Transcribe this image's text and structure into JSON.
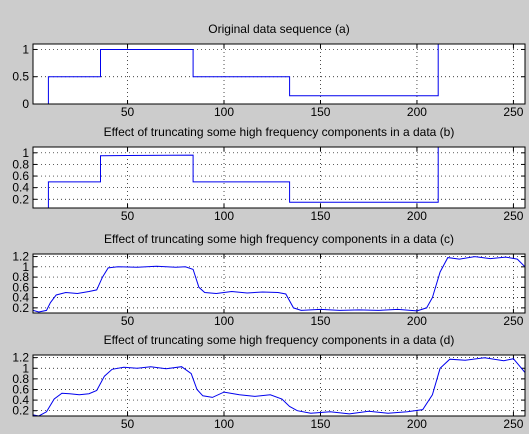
{
  "figure": {
    "background": "#cccccc",
    "line_color": "#0000ee"
  },
  "chart_data": [
    {
      "type": "line",
      "title": "Original data sequence (a)",
      "xlim": [
        1,
        256
      ],
      "xticks": [
        50,
        100,
        150,
        200,
        250
      ],
      "ylim": [
        0,
        1.1
      ],
      "yticks": [
        0,
        0.5,
        1
      ],
      "ytick_labels": [
        "0",
        "0.5",
        "1"
      ],
      "grid": true,
      "series": [
        {
          "x": [
            1,
            9,
            9,
            36,
            36,
            84,
            84,
            134,
            134,
            211,
            211,
            256
          ],
          "y": [
            0,
            0,
            0.5,
            0.5,
            1.0,
            1.0,
            0.5,
            0.5,
            0.15,
            0.15,
            1.1,
            1.1
          ]
        }
      ]
    },
    {
      "type": "line",
      "title": "Effect of truncating some high frequency components in a data (b)",
      "xlim": [
        1,
        256
      ],
      "xticks": [
        50,
        100,
        150,
        200,
        250
      ],
      "ylim": [
        0.05,
        1.1
      ],
      "yticks": [
        0.2,
        0.4,
        0.6,
        0.8,
        1
      ],
      "ytick_labels": [
        "0.2",
        "0.4",
        "0.6",
        "0.8",
        "1"
      ],
      "grid": true,
      "series": [
        {
          "x": [
            1,
            9,
            9,
            36,
            36,
            84,
            84,
            134,
            134,
            211,
            211,
            256
          ],
          "y": [
            0.05,
            0.05,
            0.5,
            0.5,
            0.95,
            0.96,
            0.5,
            0.5,
            0.15,
            0.15,
            1.1,
            1.1
          ]
        }
      ]
    },
    {
      "type": "line",
      "title": "Effect of truncating some high frequency components in a data (c)",
      "xlim": [
        1,
        256
      ],
      "xticks": [
        50,
        100,
        150,
        200,
        250
      ],
      "ylim": [
        0.1,
        1.25
      ],
      "yticks": [
        0.2,
        0.4,
        0.6,
        0.8,
        1,
        1.2
      ],
      "ytick_labels": [
        "0.2",
        "0.4",
        "0.6",
        "0.8",
        "1",
        "1.2"
      ],
      "grid": true,
      "series": [
        {
          "x": [
            1,
            4,
            8,
            10,
            13,
            18,
            24,
            30,
            34,
            37,
            40,
            45,
            55,
            65,
            75,
            80,
            84,
            87,
            90,
            96,
            104,
            112,
            120,
            128,
            132,
            136,
            140,
            150,
            160,
            170,
            180,
            190,
            200,
            205,
            208,
            212,
            216,
            222,
            230,
            238,
            246,
            252,
            256
          ],
          "y": [
            0.15,
            0.12,
            0.15,
            0.3,
            0.45,
            0.5,
            0.48,
            0.52,
            0.55,
            0.8,
            0.98,
            1.0,
            0.99,
            1.01,
            0.99,
            1.0,
            0.95,
            0.6,
            0.5,
            0.48,
            0.52,
            0.49,
            0.51,
            0.5,
            0.47,
            0.2,
            0.15,
            0.17,
            0.15,
            0.16,
            0.15,
            0.17,
            0.14,
            0.2,
            0.4,
            0.9,
            1.18,
            1.15,
            1.2,
            1.16,
            1.19,
            1.15,
            1.0
          ]
        }
      ]
    },
    {
      "type": "line",
      "title": "Effect of truncating some high frequency components in a data (d)",
      "xlim": [
        1,
        256
      ],
      "xticks": [
        50,
        100,
        150,
        200,
        250
      ],
      "ylim": [
        0.1,
        1.25
      ],
      "yticks": [
        0.2,
        0.4,
        0.6,
        0.8,
        1,
        1.2
      ],
      "ytick_labels": [
        "0.2",
        "0.4",
        "0.6",
        "0.8",
        "1",
        "1.2"
      ],
      "grid": true,
      "series": [
        {
          "x": [
            1,
            4,
            8,
            12,
            16,
            20,
            25,
            30,
            34,
            38,
            42,
            48,
            55,
            62,
            70,
            78,
            83,
            86,
            89,
            94,
            100,
            108,
            116,
            124,
            130,
            134,
            138,
            145,
            155,
            165,
            175,
            185,
            195,
            203,
            208,
            212,
            217,
            225,
            235,
            245,
            250,
            253,
            256
          ],
          "y": [
            0.12,
            0.1,
            0.18,
            0.42,
            0.53,
            0.52,
            0.5,
            0.52,
            0.58,
            0.85,
            0.98,
            1.02,
            1.0,
            1.03,
            0.99,
            1.03,
            0.9,
            0.6,
            0.48,
            0.45,
            0.55,
            0.5,
            0.47,
            0.5,
            0.42,
            0.28,
            0.2,
            0.15,
            0.18,
            0.14,
            0.19,
            0.15,
            0.18,
            0.22,
            0.5,
            1.0,
            1.17,
            1.15,
            1.2,
            1.14,
            1.18,
            1.05,
            0.92
          ]
        }
      ]
    }
  ]
}
